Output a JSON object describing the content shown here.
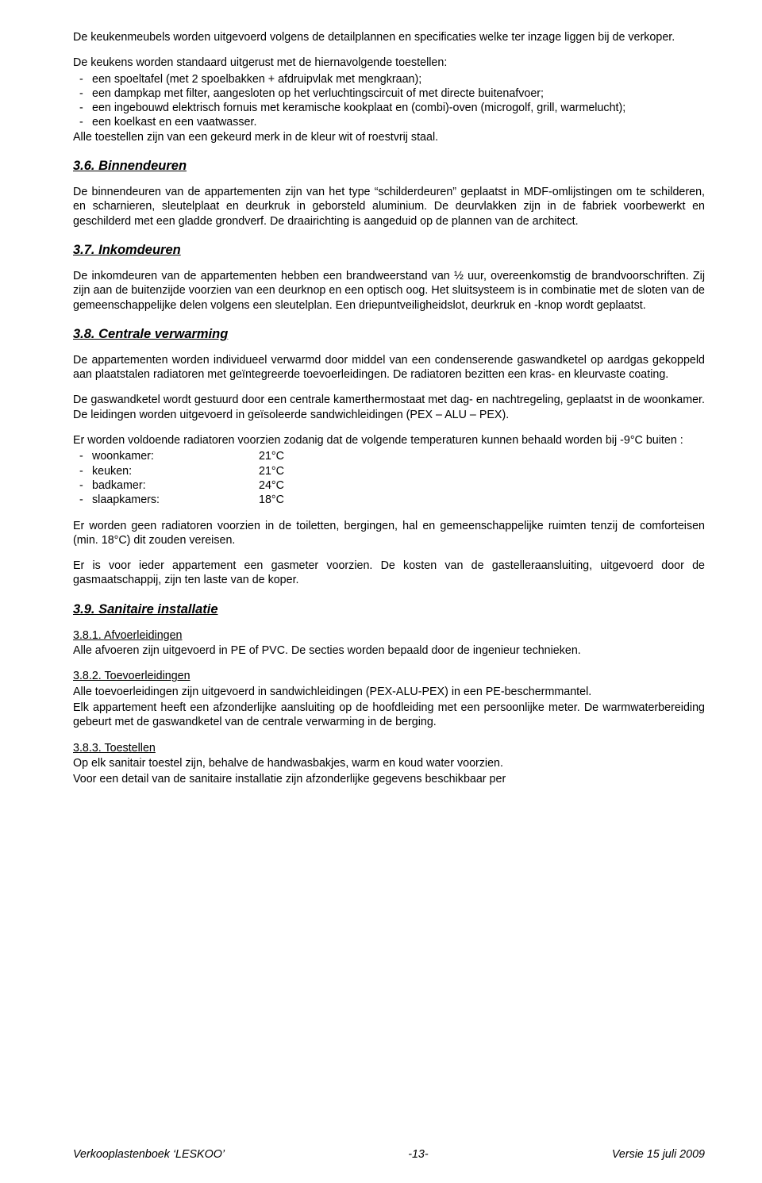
{
  "intro1": "De keukenmeubels worden uitgevoerd volgens de detailplannen en specificaties welke ter inzage liggen bij de verkoper.",
  "intro2": "De keukens worden standaard uitgerust met de hiernavolgende toestellen:",
  "kitchen_items": [
    "een spoeltafel (met 2 spoelbakken + afdruipvlak met mengkraan);",
    "een dampkap met filter, aangesloten op het verluchtingscircuit of met directe buitenafvoer;",
    "een ingebouwd elektrisch fornuis met keramische kookplaat en (combi)-oven (microgolf, grill, warmelucht);",
    "een koelkast en een vaatwasser."
  ],
  "intro3": "Alle toestellen zijn van een gekeurd merk in de kleur wit of roestvrij staal.",
  "s36_title": "3.6. Binnendeuren",
  "s36_p": "De binnendeuren van de appartementen zijn van het type “schilderdeuren” geplaatst in MDF-omlijstingen om te schilderen, en scharnieren, sleutelplaat en deurkruk in geborsteld aluminium. De deurvlakken zijn in de fabriek voorbewerkt en geschilderd met een gladde grondverf. De draairichting is aangeduid op de plannen van de architect.",
  "s37_title": "3.7. Inkomdeuren",
  "s37_p": "De inkomdeuren van de appartementen hebben een brandweerstand van ½ uur, overeenkomstig de brandvoorschriften. Zij zijn aan de buitenzijde voorzien van een deurknop en een optisch oog. Het sluitsysteem is in combinatie met de sloten van de gemeenschappelijke delen volgens een sleutelplan. Een driepuntveiligheidslot, deurkruk en -knop wordt geplaatst.",
  "s38_title": "3.8. Centrale verwarming",
  "s38_p1": "De appartementen worden individueel verwarmd door middel van een condenserende gaswandketel op aardgas gekoppeld aan plaatstalen radiatoren met geïntegreerde toevoerleidingen. De radiatoren bezitten een kras- en kleurvaste coating.",
  "s38_p2": "De gaswandketel wordt gestuurd door een centrale kamerthermostaat met dag- en nachtregeling, geplaatst in de woonkamer. De leidingen worden uitgevoerd in geïsoleerde sandwichleidingen (PEX – ALU – PEX).",
  "s38_p3": "Er worden voldoende radiatoren voorzien zodanig dat de volgende temperaturen kunnen behaald worden bij -9°C buiten :",
  "temps": [
    {
      "room": "woonkamer:",
      "val": "21°C"
    },
    {
      "room": "keuken:",
      "val": "21°C"
    },
    {
      "room": "badkamer:",
      "val": "24°C"
    },
    {
      "room": "slaapkamers:",
      "val": "18°C"
    }
  ],
  "s38_p4": "Er worden geen radiatoren voorzien in de toiletten, bergingen, hal en gemeenschappelijke ruimten tenzij de comforteisen (min. 18°C) dit zouden vereisen.",
  "s38_p5": "Er is voor ieder appartement een gasmeter voorzien. De kosten van de gastelleraansluiting, uitgevoerd door de gasmaatschappij, zijn ten laste van de koper.",
  "s39_title": "3.9. Sanitaire installatie",
  "s381_head": "3.8.1. Afvoerleidingen",
  "s381_p": "Alle afvoeren zijn uitgevoerd in PE of PVC.  De secties worden bepaald door de ingenieur technieken.",
  "s382_head": "3.8.2. Toevoerleidingen",
  "s382_p1": "Alle toevoerleidingen zijn uitgevoerd in sandwichleidingen (PEX-ALU-PEX) in een PE-beschermmantel.",
  "s382_p2": "Elk appartement heeft een afzonderlijke aansluiting op de hoofdleiding met een persoonlijke meter. De warmwaterbereiding gebeurt met de gaswandketel van de centrale verwarming in de berging.",
  "s383_head": "3.8.3. Toestellen",
  "s383_p1": "Op elk sanitair toestel zijn, behalve de handwasbakjes, warm en koud water voorzien.",
  "s383_p2": "Voor een detail van de sanitaire installatie zijn afzonderlijke gegevens beschikbaar per",
  "footer_left": "Verkooplastenboek ‘LESKOO’",
  "footer_center": "-13-",
  "footer_right": "Versie 15 juli 2009"
}
